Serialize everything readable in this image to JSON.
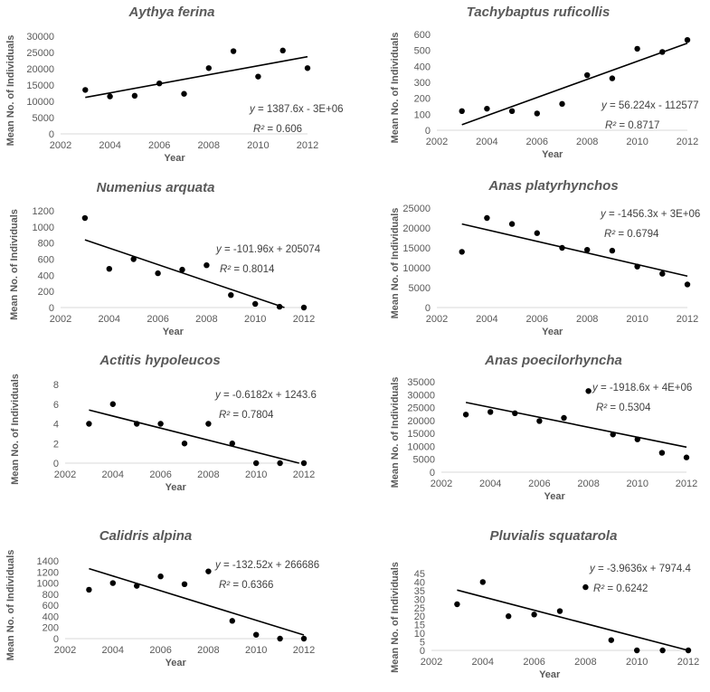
{
  "colors": {
    "point": "#000000",
    "trendline": "#000000",
    "axis": "#d9d9d9",
    "text": "#595959"
  },
  "chart_data": [
    {
      "type": "scatter",
      "title": "Aythya ferina",
      "xlabel": "Year",
      "ylabel": "Mean No. of Individuals",
      "xlim": [
        2002,
        2012
      ],
      "xticks": [
        2002,
        2004,
        2006,
        2008,
        2010,
        2012
      ],
      "ylim": [
        0,
        30000
      ],
      "yticks": [
        0,
        5000,
        10000,
        15000,
        20000,
        25000,
        30000
      ],
      "x": [
        2003,
        2004,
        2005,
        2006,
        2007,
        2008,
        2009,
        2010,
        2011,
        2012
      ],
      "y": [
        13500,
        11500,
        11700,
        15500,
        12300,
        20200,
        25400,
        17600,
        25600,
        20200
      ],
      "trendline": {
        "type": "linear",
        "equation_prefix": "y",
        "equation_rest": " = 1387.6x - 3E+06",
        "r2_label": "R²",
        "r2_value": " = 0.606",
        "start": [
          2003,
          11200
        ],
        "end": [
          2012,
          23700
        ]
      }
    },
    {
      "type": "scatter",
      "title": "Tachybaptus ruficollis",
      "xlabel": "Year",
      "ylabel": "Mean No. of Individuals",
      "xlim": [
        2002,
        2012
      ],
      "xticks": [
        2002,
        2004,
        2006,
        2008,
        2010,
        2012
      ],
      "ylim": [
        0,
        600
      ],
      "yticks": [
        0,
        100,
        200,
        300,
        400,
        500,
        600
      ],
      "x": [
        2003,
        2004,
        2005,
        2006,
        2007,
        2008,
        2009,
        2010,
        2011,
        2012
      ],
      "y": [
        120,
        135,
        120,
        105,
        165,
        345,
        325,
        510,
        490,
        565
      ],
      "trendline": {
        "type": "linear",
        "equation_prefix": "y",
        "equation_rest": " = 56.224x - 112577",
        "r2_label": "R²",
        "r2_value": " = 0.8717",
        "start": [
          2003,
          35
        ],
        "end": [
          2012,
          545
        ]
      }
    },
    {
      "type": "scatter",
      "title": "Numenius arquata",
      "xlabel": "Year",
      "ylabel": "Mean No. of Individuals",
      "xlim": [
        2002,
        2012
      ],
      "xticks": [
        2002,
        2004,
        2006,
        2008,
        2010,
        2012
      ],
      "ylim": [
        0,
        1200
      ],
      "yticks": [
        0,
        200,
        400,
        600,
        800,
        1000,
        1200
      ],
      "x": [
        2003,
        2004,
        2005,
        2006,
        2007,
        2008,
        2009,
        2010,
        2011,
        2012
      ],
      "y": [
        1110,
        480,
        600,
        425,
        470,
        525,
        155,
        45,
        10,
        0
      ],
      "trendline": {
        "type": "linear",
        "equation_prefix": "y",
        "equation_rest": " = -101.96x + 205074",
        "r2_label": "R²",
        "r2_value": " = 0.8014",
        "start": [
          2003,
          840
        ],
        "end": [
          2011.2,
          0
        ]
      }
    },
    {
      "type": "scatter",
      "title": "Anas platyrhynchos",
      "xlabel": "Year",
      "ylabel": "Mean No. of Individuals",
      "xlim": [
        2002,
        2012
      ],
      "xticks": [
        2002,
        2004,
        2006,
        2008,
        2010,
        2012
      ],
      "ylim": [
        0,
        25000
      ],
      "yticks": [
        0,
        5000,
        10000,
        15000,
        20000,
        25000
      ],
      "x": [
        2003,
        2004,
        2005,
        2006,
        2007,
        2008,
        2009,
        2010,
        2011,
        2012
      ],
      "y": [
        14000,
        22500,
        21000,
        18700,
        15000,
        14500,
        14300,
        10300,
        8500,
        5800
      ],
      "trendline": {
        "type": "linear",
        "equation_prefix": "y",
        "equation_rest": " = -1456.3x + 3E+06",
        "r2_label": "R²",
        "r2_value": " = 0.6794",
        "start": [
          2003,
          21000
        ],
        "end": [
          2012,
          7900
        ]
      }
    },
    {
      "type": "scatter",
      "title": "Actitis hypoleucos",
      "xlabel": "Year",
      "ylabel": "Mean No. of Individuals",
      "xlim": [
        2002,
        2012
      ],
      "xticks": [
        2002,
        2004,
        2006,
        2008,
        2010,
        2012
      ],
      "ylim": [
        0,
        8
      ],
      "yticks": [
        0,
        2,
        4,
        6,
        8
      ],
      "x": [
        2003,
        2004,
        2005,
        2006,
        2007,
        2008,
        2009,
        2010,
        2011,
        2012
      ],
      "y": [
        4,
        6,
        4,
        4,
        2,
        4,
        2,
        0,
        0,
        0
      ],
      "trendline": {
        "type": "linear",
        "equation_prefix": "y",
        "equation_rest": " = -0.6182x + 1243.6",
        "r2_label": "R²",
        "r2_value": " = 0.7804",
        "start": [
          2003,
          5.4
        ],
        "end": [
          2011.8,
          0
        ]
      }
    },
    {
      "type": "scatter",
      "title": "Anas poecilorhyncha",
      "xlabel": "Year",
      "ylabel": "Mean No. of Individuals",
      "xlim": [
        2002,
        2012
      ],
      "xticks": [
        2002,
        2004,
        2006,
        2008,
        2010,
        2012
      ],
      "ylim": [
        0,
        35000
      ],
      "yticks": [
        0,
        5000,
        10000,
        15000,
        20000,
        25000,
        30000,
        35000
      ],
      "x": [
        2003,
        2004,
        2005,
        2006,
        2007,
        2008,
        2009,
        2010,
        2011,
        2012
      ],
      "y": [
        22300,
        23300,
        22800,
        19800,
        21000,
        31400,
        14600,
        12700,
        7500,
        5700
      ],
      "trendline": {
        "type": "linear",
        "equation_prefix": "y",
        "equation_rest": " = -1918.6x + 4E+06",
        "r2_label": "R²",
        "r2_value": " = 0.5304",
        "start": [
          2003,
          27000
        ],
        "end": [
          2012,
          9700
        ]
      }
    },
    {
      "type": "scatter",
      "title": "Calidris alpina",
      "xlabel": "Year",
      "ylabel": "Mean No. of Individuals",
      "xlim": [
        2002,
        2012
      ],
      "xticks": [
        2002,
        2004,
        2006,
        2008,
        2010,
        2012
      ],
      "ylim": [
        0,
        1400
      ],
      "yticks": [
        0,
        200,
        400,
        600,
        800,
        1000,
        1200,
        1400
      ],
      "x": [
        2003,
        2004,
        2005,
        2006,
        2007,
        2008,
        2009,
        2010,
        2011,
        2012
      ],
      "y": [
        880,
        1000,
        950,
        1120,
        980,
        1210,
        320,
        70,
        0,
        0
      ],
      "trendline": {
        "type": "linear",
        "equation_prefix": "y",
        "equation_rest": " = -132.52x + 266686",
        "r2_label": "R²",
        "r2_value": " = 0.6366",
        "start": [
          2003,
          1260
        ],
        "end": [
          2012,
          65
        ]
      }
    },
    {
      "type": "scatter",
      "title": "Pluvialis squatarola",
      "xlabel": "Year",
      "ylabel": "Mean No. of Individuals",
      "xlim": [
        2002,
        2012
      ],
      "xticks": [
        2002,
        2004,
        2006,
        2008,
        2010,
        2012
      ],
      "ylim": [
        0,
        45
      ],
      "yticks": [
        0,
        5,
        10,
        15,
        20,
        25,
        30,
        35,
        40,
        45
      ],
      "x": [
        2003,
        2004,
        2005,
        2006,
        2007,
        2008,
        2009,
        2010,
        2011,
        2012
      ],
      "y": [
        27,
        40,
        20,
        21,
        23,
        37,
        6,
        0,
        0,
        0
      ],
      "trendline": {
        "type": "linear",
        "equation_prefix": "y",
        "equation_rest": " = -3.9636x + 7974.4",
        "r2_label": "R²",
        "r2_value": " = 0.6242",
        "start": [
          2003,
          35.3
        ],
        "end": [
          2012,
          0
        ]
      }
    }
  ]
}
